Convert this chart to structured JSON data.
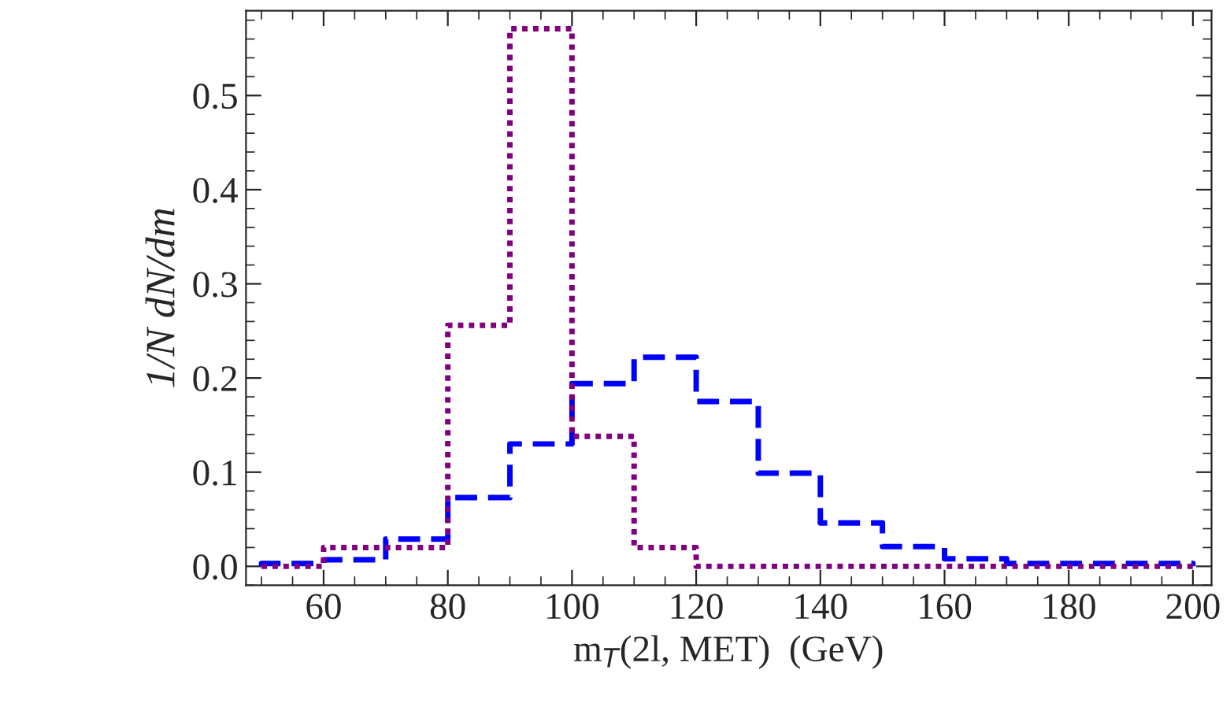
{
  "chart_data": {
    "type": "histogram",
    "xlabel": "m$_{T}$(2l, MET)  (GeV)",
    "ylabel": "1/N dN/dm",
    "bins": [
      50,
      60,
      70,
      80,
      90,
      100,
      110,
      120,
      130,
      140,
      150,
      160,
      170,
      180,
      190,
      200
    ],
    "series": [
      {
        "color": "#0000ff",
        "line_style": "dashed",
        "values": [
          0.003,
          0.007,
          0.029,
          0.073,
          0.13,
          0.194,
          0.222,
          0.175,
          0.099,
          0.046,
          0.021,
          0.008,
          0.003,
          0.003,
          0.003
        ]
      },
      {
        "color": "#800080",
        "line_style": "dotted",
        "values": [
          0.0,
          0.02,
          0.02,
          0.256,
          0.571,
          0.138,
          0.02,
          0.0,
          0.0,
          0.0,
          0.0,
          0.0,
          0.0,
          0.0,
          0.0
        ]
      }
    ],
    "xlim": [
      47.5,
      203
    ],
    "ylim": [
      -0.02,
      0.59
    ],
    "xticks": [
      60,
      80,
      100,
      120,
      140,
      160,
      180,
      200
    ],
    "yticks": [
      {
        "value": 0,
        "label": "0.0"
      },
      0.1,
      0.2,
      0.3,
      0.4,
      0.5
    ],
    "grid": false,
    "legend": false
  }
}
